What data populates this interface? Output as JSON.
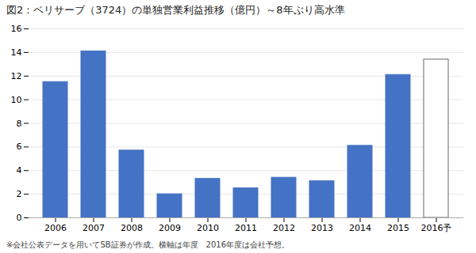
{
  "chart_data": {
    "type": "bar",
    "title": "図2：ベリサーブ（3724）の単独営業利益推移（億円）～8年ぶり高水準",
    "footnote": "※会社公表データを用いてSB証券が作成。横軸は年度　2016年度は会社予想。",
    "categories": [
      "2006",
      "2007",
      "2008",
      "2009",
      "2010",
      "2011",
      "2012",
      "2013",
      "2014",
      "2015",
      "2016予"
    ],
    "values": [
      11.5,
      14.1,
      5.7,
      2.0,
      3.3,
      2.5,
      3.4,
      3.1,
      6.1,
      12.1,
      13.4
    ],
    "colors": [
      "#4472c4",
      "#4472c4",
      "#4472c4",
      "#4472c4",
      "#4472c4",
      "#4472c4",
      "#4472c4",
      "#4472c4",
      "#4472c4",
      "#4472c4",
      "#ffffff"
    ],
    "ylim": [
      0,
      16
    ],
    "yticks": [
      0,
      2,
      4,
      6,
      8,
      10,
      12,
      14,
      16
    ],
    "grid": true
  }
}
